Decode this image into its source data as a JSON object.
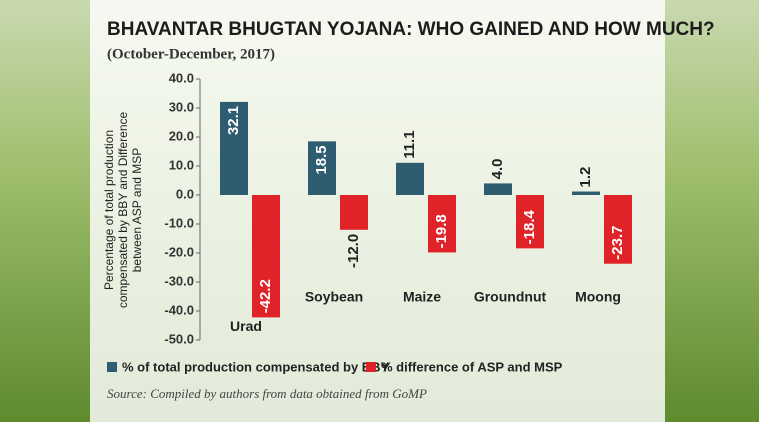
{
  "chart_data": {
    "type": "bar",
    "title": "BHAVANTAR BHUGTAN YOJANA: WHO GAINED AND HOW MUCH?",
    "subtitle": "(October-December, 2017)",
    "ylabel": [
      "Percentage of total production",
      "compensated by BBY and Difference",
      "between ASP and MSP"
    ],
    "categories": [
      "Urad",
      "Soybean",
      "Maize",
      "Groundnut",
      "Moong"
    ],
    "series": [
      {
        "name": "% of total production compensated by BBY",
        "color": "#2e5d71",
        "values": [
          32.1,
          18.5,
          11.1,
          4.0,
          1.2
        ],
        "value_labels": [
          "32.1",
          "18.5",
          "11.1",
          "4.0",
          "1.2"
        ]
      },
      {
        "name": "% difference of ASP and MSP",
        "color": "#df2329",
        "values": [
          -42.2,
          -12.0,
          -19.8,
          -18.4,
          -23.7
        ],
        "value_labels": [
          "-42.2",
          "-12.0",
          "-19.8",
          "-18.4",
          "-23.7"
        ]
      }
    ],
    "ylim": [
      -50,
      40
    ],
    "yticks": [
      {
        "value": 40,
        "label": "40.0"
      },
      {
        "value": 30,
        "label": "30.0"
      },
      {
        "value": 20,
        "label": "20.0"
      },
      {
        "value": 10,
        "label": "10.0"
      },
      {
        "value": 0,
        "label": "0.0"
      },
      {
        "value": -10,
        "label": "-10.0"
      },
      {
        "value": -20,
        "label": "-20.0"
      },
      {
        "value": -30,
        "label": "-30.0"
      },
      {
        "value": -40,
        "label": "-40.0"
      },
      {
        "value": -50,
        "label": "-50.0"
      }
    ],
    "source": "Source: Compiled by authors from data obtained from GoMP"
  }
}
